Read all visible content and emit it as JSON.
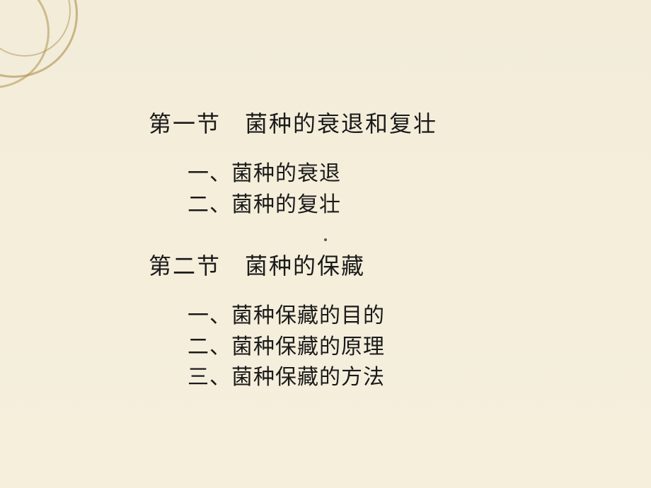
{
  "background_color": "#f3edda",
  "text_color": "#1a1a1a",
  "font_family": "SimSun",
  "title_fontsize": 32,
  "item_fontsize": 30,
  "section1": {
    "title": "第一节　菌种的衰退和复壮",
    "items": [
      "一、菌种的衰退",
      "二、菌种的复壮"
    ]
  },
  "section2": {
    "title": "第二节　菌种的保藏",
    "items": [
      "一、菌种保藏的目的",
      "二、菌种保藏的原理",
      "三、菌种保藏的方法"
    ]
  },
  "decoration": {
    "arc_color": "#a8863f",
    "arc_count": 3
  }
}
